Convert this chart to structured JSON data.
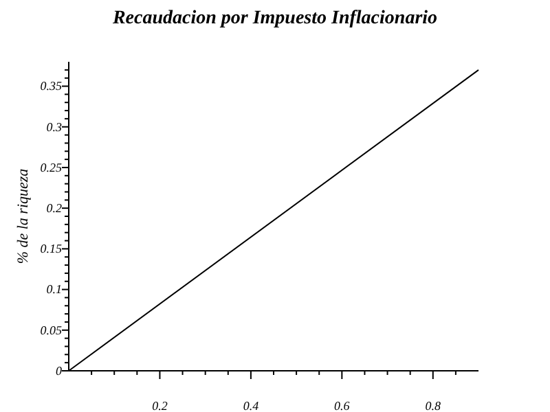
{
  "chart_data": {
    "type": "line",
    "title": "Recaudacion por Impuesto Inflacionario",
    "ylabel": "% de la riqueza",
    "x": [
      0,
      0.9
    ],
    "series": [
      {
        "color": "#000000",
        "values": [
          0,
          0.37
        ]
      }
    ],
    "xlim": [
      0,
      0.9
    ],
    "ylim": [
      0,
      0.38
    ],
    "xticks": [
      {
        "value": 0.05,
        "label": null
      },
      {
        "value": 0.1,
        "label": null
      },
      {
        "value": 0.15,
        "label": null
      },
      0.2,
      {
        "value": 0.25,
        "label": null
      },
      {
        "value": 0.3,
        "label": null
      },
      {
        "value": 0.35,
        "label": null
      },
      0.4,
      {
        "value": 0.45,
        "label": null
      },
      {
        "value": 0.5,
        "label": null
      },
      {
        "value": 0.55,
        "label": null
      },
      0.6,
      {
        "value": 0.65,
        "label": null
      },
      {
        "value": 0.7,
        "label": null
      },
      {
        "value": 0.75,
        "label": null
      },
      0.8,
      {
        "value": 0.85,
        "label": null
      }
    ],
    "yticks": [
      0,
      {
        "value": 0.01,
        "label": null
      },
      {
        "value": 0.02,
        "label": null
      },
      {
        "value": 0.03,
        "label": null
      },
      {
        "value": 0.04,
        "label": null
      },
      0.05,
      {
        "value": 0.06,
        "label": null
      },
      {
        "value": 0.07,
        "label": null
      },
      {
        "value": 0.08,
        "label": null
      },
      {
        "value": 0.09,
        "label": null
      },
      0.1,
      {
        "value": 0.11,
        "label": null
      },
      {
        "value": 0.12,
        "label": null
      },
      {
        "value": 0.13,
        "label": null
      },
      {
        "value": 0.14,
        "label": null
      },
      0.15,
      {
        "value": 0.16,
        "label": null
      },
      {
        "value": 0.17,
        "label": null
      },
      {
        "value": 0.18,
        "label": null
      },
      {
        "value": 0.19,
        "label": null
      },
      0.2,
      {
        "value": 0.21,
        "label": null
      },
      {
        "value": 0.22,
        "label": null
      },
      {
        "value": 0.23,
        "label": null
      },
      {
        "value": 0.24,
        "label": null
      },
      0.25,
      {
        "value": 0.26,
        "label": null
      },
      {
        "value": 0.27,
        "label": null
      },
      {
        "value": 0.28,
        "label": null
      },
      {
        "value": 0.29,
        "label": null
      },
      0.3,
      {
        "value": 0.31,
        "label": null
      },
      {
        "value": 0.32,
        "label": null
      },
      {
        "value": 0.33,
        "label": null
      },
      {
        "value": 0.34,
        "label": null
      },
      0.35,
      {
        "value": 0.36,
        "label": null
      },
      {
        "value": 0.37,
        "label": null
      }
    ],
    "grid": false,
    "marker": "none",
    "line_style": "solid"
  }
}
